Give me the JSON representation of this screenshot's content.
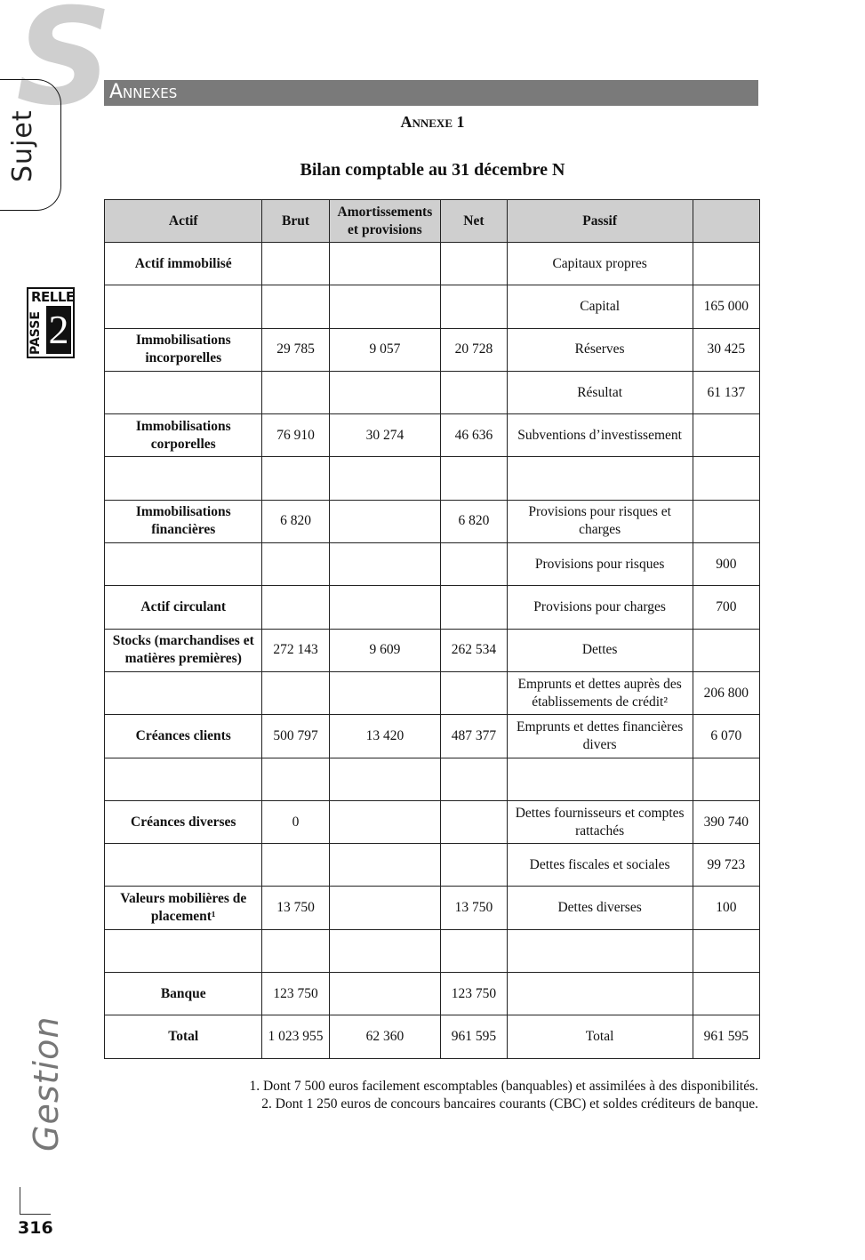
{
  "sidebar": {
    "big_letter": "S",
    "sujet": "Sujet",
    "badge_top": "RELLE",
    "badge_side": "PASSE",
    "badge_number": "2",
    "gestion": "Gestion",
    "page_number": "316"
  },
  "header": {
    "section": "Annexes",
    "annexe": "Annexe 1",
    "title": "Bilan comptable au 31 décembre N"
  },
  "table": {
    "headers": [
      "Actif",
      "Brut",
      "Amortissements et provisions",
      "Net",
      "Passif",
      ""
    ],
    "rows": [
      [
        "Actif immobilisé",
        "",
        "",
        "",
        "Capitaux propres",
        ""
      ],
      [
        "",
        "",
        "",
        "",
        "Capital",
        "165 000"
      ],
      [
        "Immobilisations incorporelles",
        "29 785",
        "9 057",
        "20 728",
        "Réserves",
        "30 425"
      ],
      [
        "",
        "",
        "",
        "",
        "Résultat",
        "61 137"
      ],
      [
        "Immobilisations corporelles",
        "76 910",
        "30 274",
        "46 636",
        "Subventions d’investissement",
        ""
      ],
      [
        "",
        "",
        "",
        "",
        "",
        ""
      ],
      [
        "Immobilisations financières",
        "6 820",
        "",
        "6 820",
        "Provisions pour risques et charges",
        ""
      ],
      [
        "",
        "",
        "",
        "",
        "Provisions pour risques",
        "900"
      ],
      [
        "Actif circulant",
        "",
        "",
        "",
        "Provisions pour charges",
        "700"
      ],
      [
        "Stocks (marchandises et matières premières)",
        "272 143",
        "9 609",
        "262 534",
        "Dettes",
        ""
      ],
      [
        "",
        "",
        "",
        "",
        "Emprunts et dettes auprès des établissements de crédit²",
        "206 800"
      ],
      [
        "Créances clients",
        "500 797",
        "13 420",
        "487 377",
        "Emprunts et dettes financières divers",
        "6 070"
      ],
      [
        "",
        "",
        "",
        "",
        "",
        ""
      ],
      [
        "Créances diverses",
        "0",
        "",
        "",
        "Dettes fournisseurs et comptes rattachés",
        "390 740"
      ],
      [
        "",
        "",
        "",
        "",
        "Dettes fiscales et sociales",
        "99 723"
      ],
      [
        "Valeurs mobilières de placement¹",
        "13 750",
        "",
        "13 750",
        "Dettes diverses",
        "100"
      ],
      [
        "",
        "",
        "",
        "",
        "",
        ""
      ],
      [
        "Banque",
        "123 750",
        "",
        "123 750",
        "",
        ""
      ],
      [
        "Total",
        "1 023 955",
        "62 360",
        "961 595",
        "Total",
        "961 595"
      ]
    ]
  },
  "footnotes": [
    "1. Dont 7 500 euros facilement escomptables (banquables) et assimilées à des disponibilités.",
    "2. Dont 1 250 euros de concours bancaires courants (CBC) et soldes créditeurs de banque."
  ]
}
